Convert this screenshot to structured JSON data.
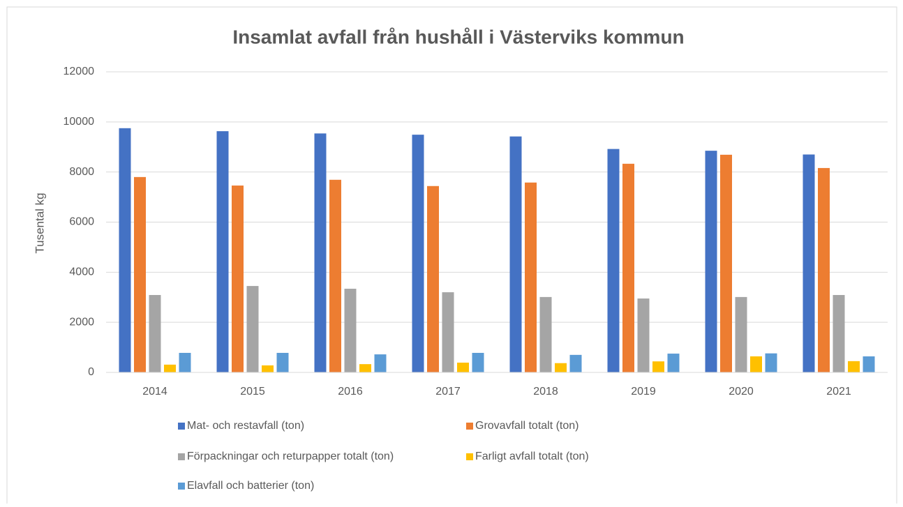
{
  "chart_data": {
    "type": "bar",
    "title": "Insamlat avfall från hushåll i Västerviks kommun",
    "y_label": "Tusental kg",
    "categories": [
      "2014",
      "2015",
      "2016",
      "2017",
      "2018",
      "2019",
      "2020",
      "2021"
    ],
    "series": [
      {
        "name": "Mat- och restavfall (ton)",
        "color": "#4472c4",
        "values": [
          9750,
          9630,
          9540,
          9490,
          9420,
          8920,
          8850,
          8700
        ]
      },
      {
        "name": "Grovavfall totalt (ton)",
        "color": "#ed7d31",
        "values": [
          7800,
          7460,
          7690,
          7440,
          7580,
          8330,
          8690,
          8160
        ]
      },
      {
        "name": "Förpackningar och returpapper totalt (ton)",
        "color": "#a5a5a5",
        "values": [
          3090,
          3450,
          3340,
          3200,
          3010,
          2950,
          3010,
          3090
        ]
      },
      {
        "name": "Farligt avfall totalt (ton)",
        "color": "#ffc000",
        "values": [
          310,
          280,
          330,
          390,
          370,
          440,
          640,
          450
        ]
      },
      {
        "name": "Elavfall och batterier (ton)",
        "color": "#5b9bd5",
        "values": [
          780,
          780,
          720,
          780,
          700,
          750,
          760,
          640
        ]
      }
    ],
    "ylim": [
      0,
      12000
    ],
    "yticks": [
      0,
      2000,
      4000,
      6000,
      8000,
      10000,
      12000
    ],
    "grid": true,
    "legend": "bottom"
  }
}
